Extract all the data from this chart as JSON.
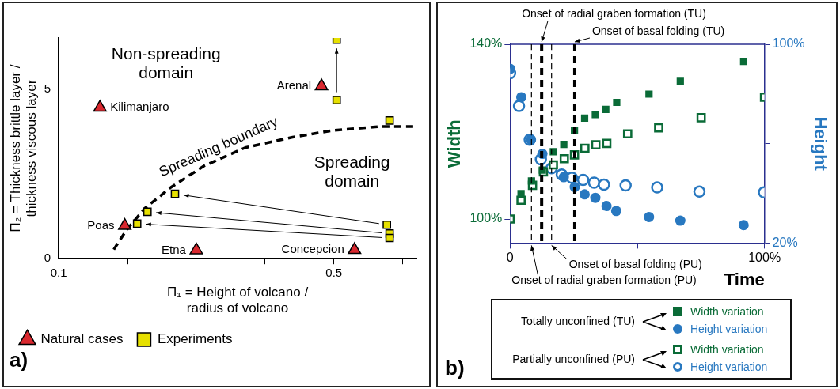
{
  "chart_data": [
    {
      "type": "scatter",
      "xlabel": "Π₁ = Height of volcano / radius of volcano",
      "ylabel": "Π₂ = Thickness brittle layer / thickness viscous layer",
      "xlim": [
        0.1,
        0.62
      ],
      "ylim": [
        0,
        6.5
      ],
      "xticks": [
        0.1,
        {
          "value": 0.2,
          "label": null
        },
        {
          "value": 0.3,
          "label": null
        },
        {
          "value": 0.4,
          "label": null
        },
        0.5,
        {
          "value": 0.6,
          "label": null
        }
      ],
      "yticks": [
        0,
        {
          "value": 1,
          "label": null
        },
        {
          "value": 2,
          "label": null
        },
        {
          "value": 3,
          "label": null
        },
        {
          "value": 4,
          "label": null
        },
        5,
        {
          "value": 6,
          "label": null
        }
      ],
      "grid": false,
      "legend": "bottom left",
      "series": [
        {
          "name": "Natural cases",
          "color": "#d9282f",
          "marker": "triangle",
          "x": [
            0.16,
            0.196,
            0.3,
            0.482,
            0.53
          ],
          "values": [
            4.45,
            0.97,
            0.25,
            5.08,
            0.26
          ]
        },
        {
          "name": "Experiments",
          "color": "#e6e000",
          "marker": "square",
          "x": [
            0.504,
            0.504,
            0.581,
            0.269,
            0.229,
            0.214,
            0.577,
            0.581,
            0.581
          ],
          "values": [
            6.45,
            4.67,
            4.07,
            1.91,
            1.38,
            1.03,
            1.0,
            0.74,
            0.61
          ]
        },
        {
          "type": "line",
          "color": "#000000",
          "marker": "none",
          "line_style": "dashed",
          "x": [
            0.18,
            0.199,
            0.225,
            0.263,
            0.311,
            0.371,
            0.44,
            0.5,
            0.564,
            0.618
          ],
          "values": [
            0.27,
            0.86,
            1.48,
            2.1,
            2.73,
            3.27,
            3.58,
            3.78,
            3.89,
            3.89
          ]
        }
      ],
      "annotations": [
        "Non-spreading domain",
        "Spreading domain",
        "Spreading boundary",
        {
          "text": "Kilimanjaro",
          "x": 0.16,
          "y": 4.45
        },
        {
          "text": "Arenal",
          "x": 0.482,
          "y": 5.08
        },
        {
          "text": "Poas",
          "x": 0.196,
          "y": 0.97
        },
        {
          "text": "Etna",
          "x": 0.3,
          "y": 0.25
        },
        {
          "text": "Concepcion",
          "x": 0.53,
          "y": 0.26
        },
        "a)"
      ]
    },
    {
      "type": "scatter",
      "xlabel": "Time",
      "ylabel": "Width",
      "y2label": "Height",
      "xlim": [
        0,
        100
      ],
      "ylim": [
        94.5,
        140
      ],
      "y2lim": [
        20,
        100
      ],
      "xticks": [
        {
          "value": 0,
          "label": "0"
        },
        {
          "value": 50,
          "label": null
        },
        {
          "value": 100,
          "label": "100%"
        }
      ],
      "yticks": [
        {
          "value": 100,
          "label": "100%"
        },
        {
          "value": 140,
          "label": "140%"
        }
      ],
      "y2ticks": [
        {
          "value": 20,
          "label": "20%"
        },
        {
          "value": 60,
          "label": null
        },
        {
          "value": 100,
          "label": "100%"
        }
      ],
      "grid": false,
      "legend": "bottom",
      "series": [
        {
          "name": "Width variation",
          "color": "#0a6b37",
          "marker": "square",
          "x": [
            4.3,
            8.4,
            12.7,
            17.0,
            21.1,
            25.3,
            29.3,
            33.5,
            37.6,
            41.9,
            54.6,
            66.9,
            91.8
          ],
          "values": [
            105.8,
            108.7,
            111.2,
            115.4,
            117.1,
            120.3,
            123.1,
            123.9,
            125.1,
            126.7,
            128.6,
            131.5,
            136.1
          ]
        },
        {
          "name": "Height variation",
          "color": "#2878c0",
          "marker": "circle",
          "axis": "y2",
          "x": [
            0,
            4.4,
            8.2,
            12.7,
            21.1,
            25.4,
            29.3,
            33.5,
            37.9,
            41.7,
            54.6,
            66.9,
            91.8
          ],
          "values": [
            90.1,
            78.7,
            61.6,
            55.9,
            46.5,
            42.6,
            39.6,
            38.2,
            34.9,
            32.9,
            30.5,
            29.0,
            27.2
          ]
        },
        {
          "name": "Width variation",
          "color": "#0a6b37",
          "marker": "square",
          "x": [
            0,
            4.3,
            8.8,
            13.1,
            17.0,
            21.3,
            25.3,
            29.4,
            33.7,
            38.0,
            46.2,
            58.4,
            75.1,
            100
          ],
          "values": [
            100.0,
            104.3,
            107.7,
            110.8,
            112.4,
            113.8,
            114.7,
            116.2,
            117.0,
            117.3,
            119.5,
            120.9,
            123.2,
            127.9
          ]
        },
        {
          "name": "Height variation",
          "color": "#2878c0",
          "marker": "circle",
          "axis": "y2",
          "x": [
            0,
            3.5,
            7.7,
            12.1,
            16.3,
            20.3,
            24.3,
            28.7,
            33.0,
            36.9,
            45.4,
            57.8,
            74.4,
            99.8
          ],
          "values": [
            88.4,
            75.2,
            61.6,
            53.7,
            50.1,
            47.6,
            46.3,
            45.4,
            44.3,
            43.5,
            43.2,
            42.4,
            40.7,
            40.4
          ]
        }
      ],
      "ref_lines": [
        {
          "axis": "x",
          "value": 8.4,
          "label": "Onset of radial graben formation (PU)",
          "line_style": "dashed",
          "color": "#000000"
        },
        {
          "axis": "x",
          "value": 12.4,
          "label": "Onset of radial graben formation (TU)",
          "line_style": "dashed",
          "color": "#000000"
        },
        {
          "axis": "x",
          "value": 16.3,
          "label": "Onset of basal folding (PU)",
          "line_style": "dashed",
          "color": "#000000"
        },
        {
          "axis": "x",
          "value": 25.4,
          "label": "Onset of basal folding (TU)",
          "line_style": "dashed",
          "color": "#000000"
        }
      ],
      "annotations": [
        "Totally unconfined (TU)",
        "Partially unconfined (PU)",
        "b)"
      ]
    }
  ]
}
